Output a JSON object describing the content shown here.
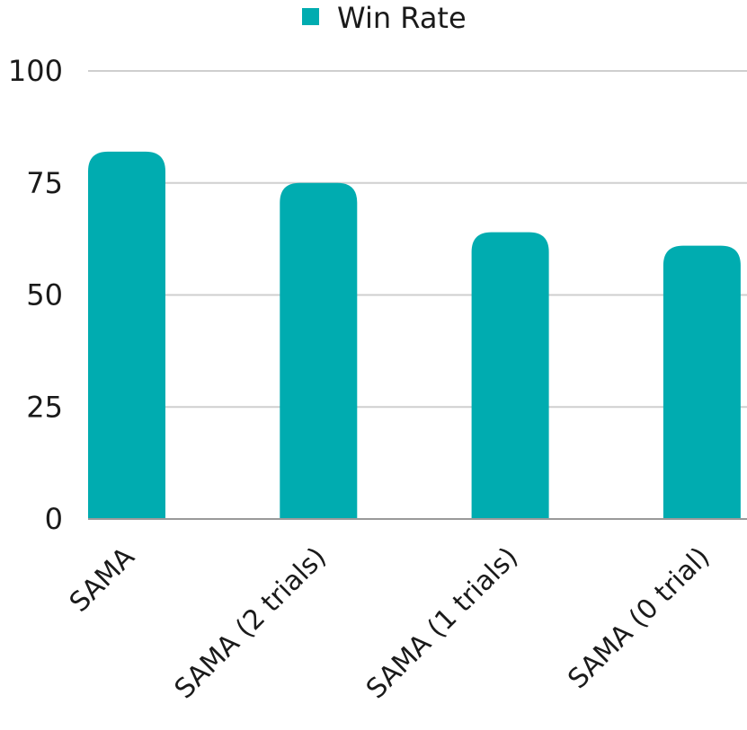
{
  "chart_data": {
    "type": "bar",
    "categories": [
      "SAMA",
      "SAMA (2 trials)",
      "SAMA (1 trials)",
      "SAMA (0 trial)"
    ],
    "series": [
      {
        "name": "Win Rate",
        "values": [
          82,
          75,
          64,
          61
        ],
        "color": "#00ACB0"
      }
    ],
    "ylim": [
      0,
      100
    ],
    "yticks": [
      0,
      25,
      50,
      75,
      100
    ],
    "grid": true,
    "legend_position": "top"
  }
}
